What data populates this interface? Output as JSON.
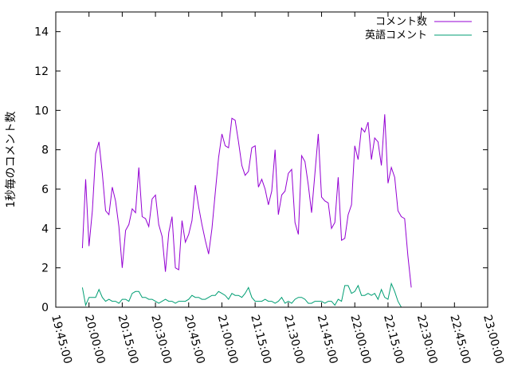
{
  "chart_data": {
    "type": "line",
    "title": "",
    "xlabel": "",
    "ylabel": "1秒毎のコメント数",
    "xlim": [
      "19:45:00",
      "23:00:00"
    ],
    "ylim": [
      0,
      15
    ],
    "x_ticks": [
      "19:45:00",
      "20:00:00",
      "20:15:00",
      "20:30:00",
      "20:45:00",
      "21:00:00",
      "21:15:00",
      "21:30:00",
      "21:45:00",
      "22:00:00",
      "22:15:00",
      "22:30:00",
      "22:45:00",
      "23:00:00"
    ],
    "y_ticks": [
      0,
      2,
      4,
      6,
      8,
      10,
      12,
      14
    ],
    "grid": false,
    "legend_position": "top-right",
    "x_start": "19:57:00",
    "x_step_minutes": 1.5,
    "series": [
      {
        "name": "コメント数",
        "color": "#9400d3",
        "values": [
          3.0,
          6.5,
          3.1,
          4.9,
          7.8,
          8.4,
          6.8,
          4.9,
          4.7,
          6.1,
          5.4,
          4.1,
          2.0,
          3.9,
          4.2,
          5.0,
          4.8,
          7.1,
          4.6,
          4.5,
          4.1,
          5.5,
          5.7,
          4.2,
          3.6,
          1.8,
          3.8,
          4.6,
          2.0,
          1.9,
          4.4,
          3.3,
          3.7,
          4.4,
          6.2,
          5.1,
          4.2,
          3.4,
          2.7,
          4.0,
          5.8,
          7.6,
          8.8,
          8.2,
          8.1,
          9.6,
          9.5,
          8.4,
          7.2,
          6.7,
          6.9,
          8.1,
          8.2,
          6.1,
          6.5,
          6.0,
          5.2,
          5.9,
          8.0,
          4.7,
          5.7,
          5.9,
          6.8,
          7.0,
          4.3,
          3.7,
          7.7,
          7.4,
          6.2,
          4.8,
          6.8,
          8.8,
          5.6,
          5.4,
          5.3,
          4.0,
          4.3,
          6.6,
          3.4,
          3.5,
          4.7,
          5.2,
          8.2,
          7.5,
          9.1,
          8.9,
          9.4,
          7.5,
          8.6,
          8.4,
          7.2,
          9.8,
          6.3,
          7.1,
          6.6,
          4.9,
          4.6,
          4.5,
          2.6,
          1.0
        ]
      },
      {
        "name": "英語コメント",
        "color": "#009e73",
        "values": [
          1.0,
          0.1,
          0.5,
          0.5,
          0.5,
          0.9,
          0.5,
          0.3,
          0.4,
          0.3,
          0.3,
          0.2,
          0.4,
          0.4,
          0.3,
          0.7,
          0.8,
          0.8,
          0.5,
          0.5,
          0.4,
          0.4,
          0.3,
          0.2,
          0.3,
          0.4,
          0.3,
          0.3,
          0.2,
          0.3,
          0.3,
          0.3,
          0.4,
          0.6,
          0.5,
          0.5,
          0.4,
          0.4,
          0.5,
          0.6,
          0.6,
          0.8,
          0.7,
          0.6,
          0.4,
          0.7,
          0.6,
          0.6,
          0.5,
          0.7,
          1.0,
          0.5,
          0.3,
          0.3,
          0.3,
          0.4,
          0.3,
          0.3,
          0.2,
          0.3,
          0.5,
          0.2,
          0.3,
          0.2,
          0.4,
          0.5,
          0.5,
          0.4,
          0.2,
          0.2,
          0.3,
          0.3,
          0.3,
          0.2,
          0.3,
          0.3,
          0.1,
          0.4,
          0.3,
          1.1,
          1.1,
          0.7,
          0.8,
          1.1,
          0.6,
          0.6,
          0.7,
          0.6,
          0.7,
          0.4,
          0.9,
          0.5,
          0.4,
          1.2,
          0.8,
          0.3,
          0.0
        ]
      }
    ]
  }
}
